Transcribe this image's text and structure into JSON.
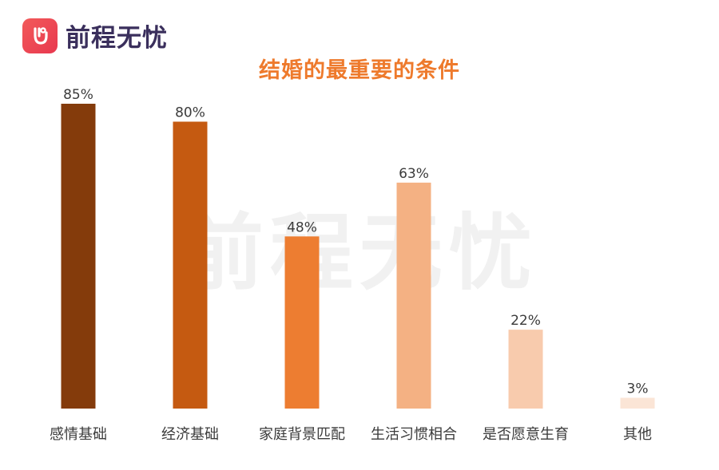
{
  "brand": {
    "name": "前程无忧",
    "logo_icon": "hand-ok-icon"
  },
  "watermark": "前程无忧",
  "chart_data": {
    "type": "bar",
    "title": "结婚的最重要的条件",
    "xlabel": "",
    "ylabel": "",
    "ylim": [
      0,
      85
    ],
    "grid": false,
    "categories": [
      "感情基础",
      "经济基础",
      "家庭背景匹配",
      "生活习惯相合",
      "是否愿意生育",
      "其他"
    ],
    "values": [
      85,
      80,
      48,
      63,
      22,
      3
    ],
    "value_labels": [
      "85%",
      "80%",
      "48%",
      "63%",
      "22%",
      "3%"
    ],
    "colors": [
      "#843b0b",
      "#c55a11",
      "#ed7d31",
      "#f4b183",
      "#f8cbad",
      "#fbe5d6"
    ]
  }
}
